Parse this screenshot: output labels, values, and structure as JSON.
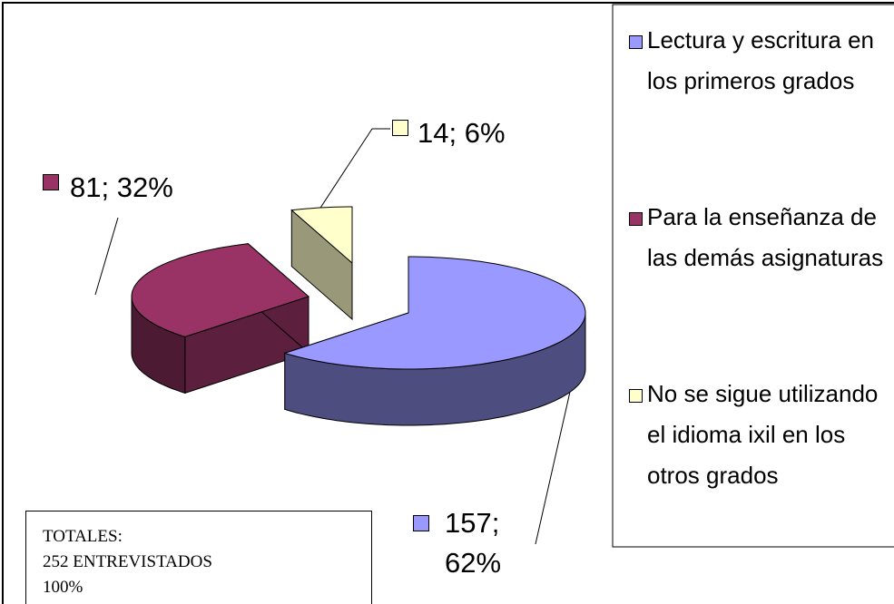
{
  "chart_data": {
    "type": "pie",
    "categories": [
      "Lectura y escritura en los primeros grados",
      "Para la enseñanza de las demás asignaturas",
      "No se sigue utilizando el idioma ixil en los otros grados"
    ],
    "values": [
      157,
      81,
      14
    ],
    "value_labels": [
      "157; 62%",
      "81; 32%",
      "14; 6%"
    ],
    "colors": [
      "#9999ff",
      "#993366",
      "#ffffcc"
    ],
    "annotation": [
      "TOTALES:",
      "252 ENTREVISTADOS",
      "100%"
    ],
    "legend": "right"
  }
}
